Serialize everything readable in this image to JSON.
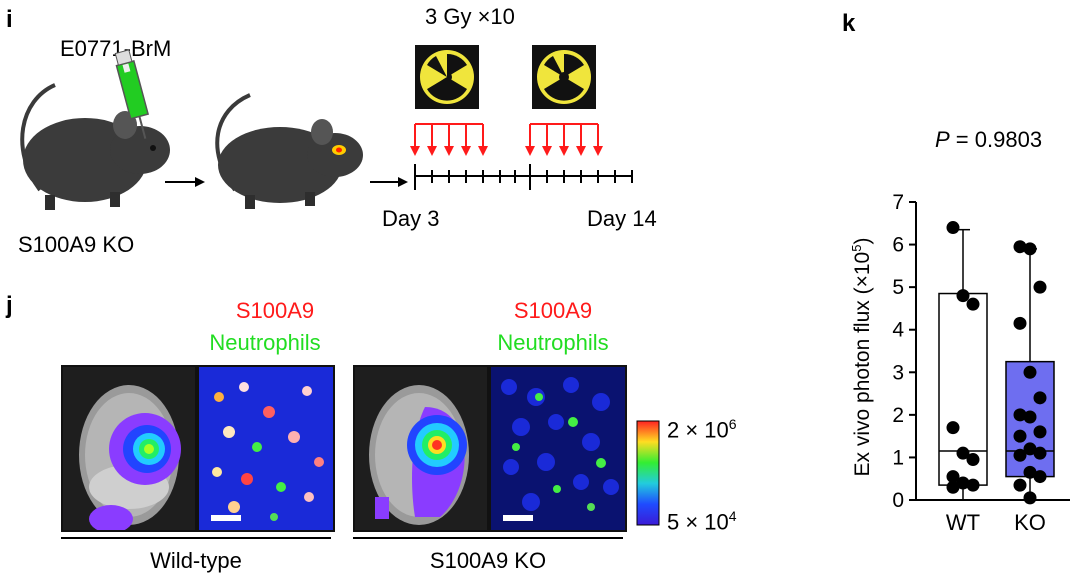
{
  "panel_i": {
    "letter": "i",
    "cell_line": "E0771-BrM",
    "dose": "3 Gy ×10",
    "mouse_label": "S100A9 KO",
    "day_start": "Day 3",
    "day_end": "Day 14"
  },
  "panel_j": {
    "letter": "j",
    "stain_red": "S100A9",
    "stain_green": "Neutrophils",
    "group_wt": "Wild-type",
    "group_ko": "S100A9 KO",
    "colorbar": {
      "max_label": "2 × 10",
      "max_exp": "6",
      "min_label": "5 × 10",
      "min_exp": "4"
    }
  },
  "panel_k": {
    "letter": "k",
    "p_label": "P",
    "p_value": " = 0.9803"
  },
  "chart_data": {
    "type": "box",
    "ylabel": "Ex vivo photon flux (×10",
    "ylabel_exp": "5",
    "ylabel_close": ")",
    "ylim": [
      0,
      7
    ],
    "yticks": [
      "0",
      "1",
      "2",
      "3",
      "4",
      "5",
      "6",
      "7"
    ],
    "categories": [
      "WT",
      "KO"
    ],
    "series": [
      {
        "name": "WT",
        "color": "#ffffff",
        "box": {
          "q1": 0.35,
          "median": 1.15,
          "q3": 4.85,
          "min": 0.0,
          "max": 6.35
        },
        "points": [
          6.4,
          4.8,
          4.6,
          1.7,
          1.1,
          0.95,
          0.55,
          0.4,
          0.35,
          0.3
        ]
      },
      {
        "name": "KO",
        "color": "#6e6ef0",
        "box": {
          "q1": 0.55,
          "median": 1.15,
          "q3": 3.25,
          "min": 0.0,
          "max": 5.9
        },
        "points": [
          5.95,
          5.9,
          5.0,
          4.15,
          3.0,
          2.4,
          2.0,
          1.95,
          1.6,
          1.5,
          1.2,
          1.1,
          1.05,
          0.65,
          0.55,
          0.35,
          0.05
        ]
      }
    ]
  },
  "colors": {
    "accent_red": "#ff1a1a",
    "accent_green": "#22dd22",
    "ko_box": "#6e6ef0"
  }
}
